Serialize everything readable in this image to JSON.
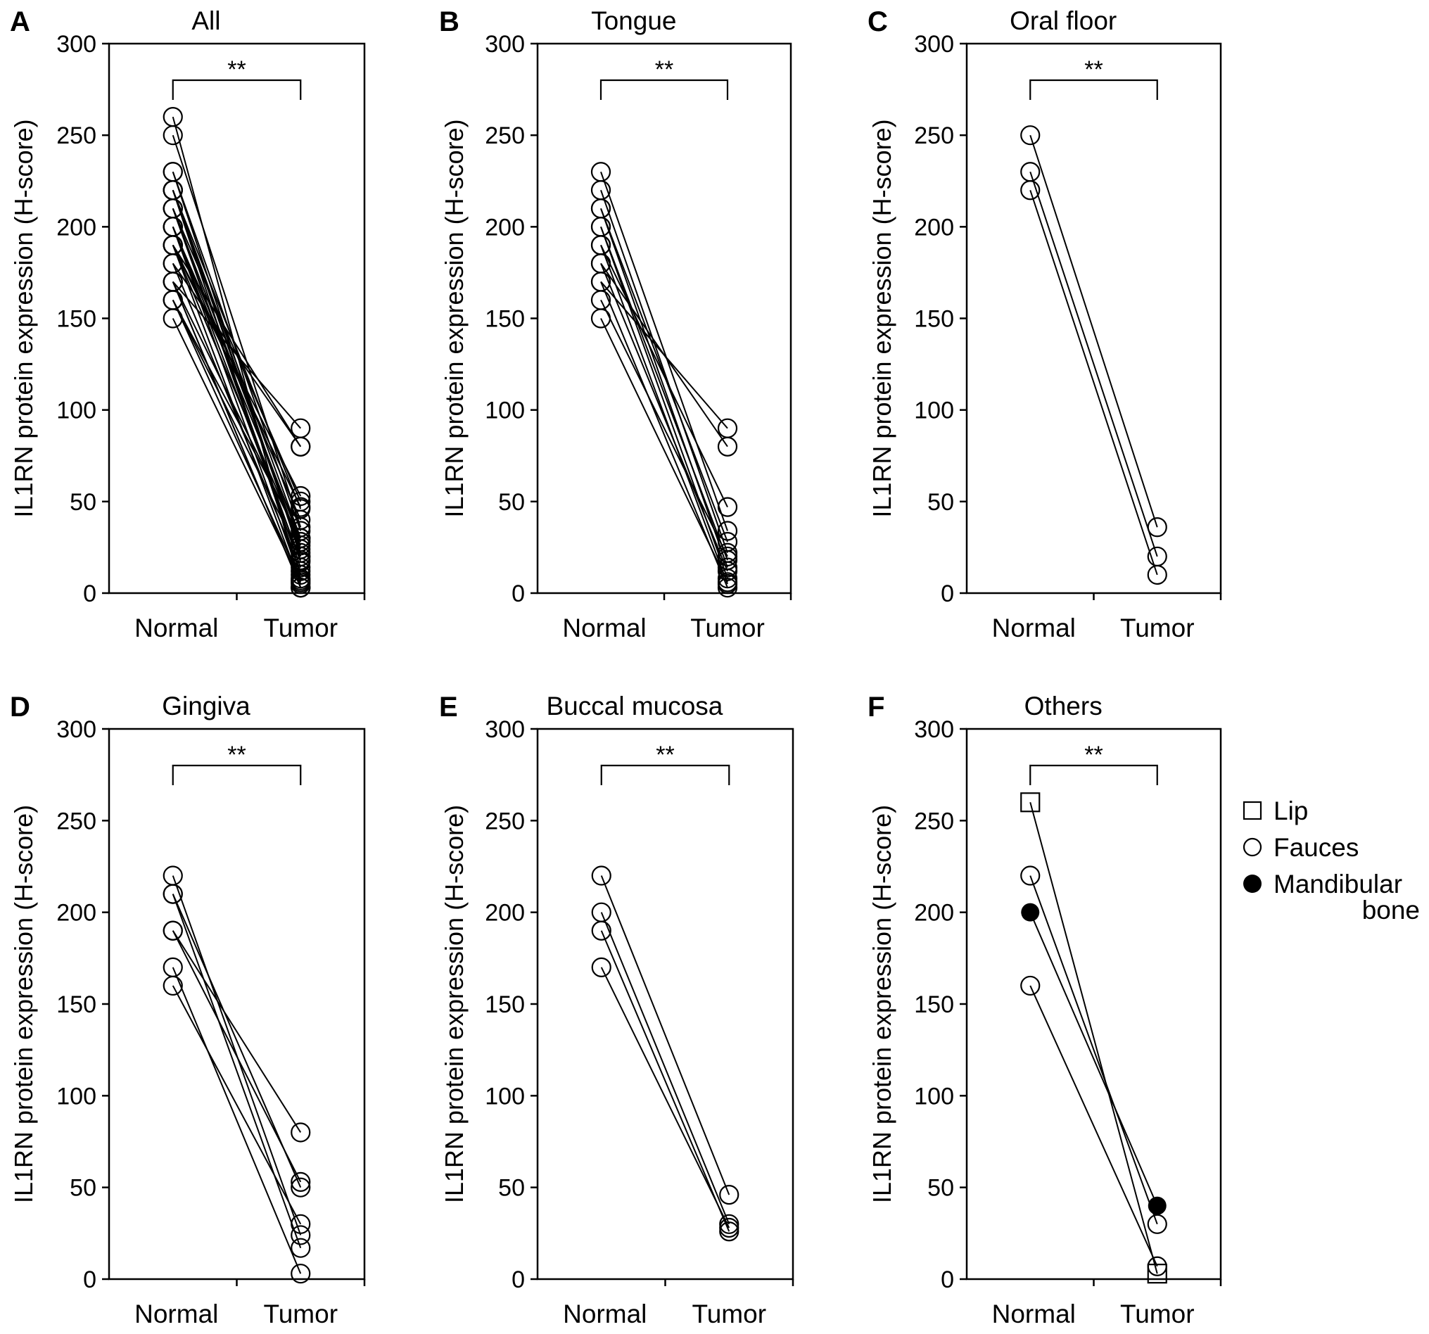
{
  "chart_data": [
    {
      "panel": "A",
      "title": "All",
      "type": "line",
      "ylabel": "IL1RN protein expression (H-score)",
      "categories": [
        "Normal",
        "Tumor"
      ],
      "ylim": [
        0,
        300
      ],
      "yticks": [
        0,
        50,
        100,
        150,
        200,
        250,
        300
      ],
      "significance": "**",
      "pairs": [
        [
          230,
          34
        ],
        [
          220,
          22
        ],
        [
          210,
          28
        ],
        [
          210,
          14
        ],
        [
          200,
          18
        ],
        [
          200,
          8
        ],
        [
          190,
          47
        ],
        [
          190,
          5
        ],
        [
          180,
          80
        ],
        [
          180,
          12
        ],
        [
          170,
          90
        ],
        [
          170,
          3
        ],
        [
          160,
          20
        ],
        [
          150,
          6
        ],
        [
          250,
          36
        ],
        [
          230,
          20
        ],
        [
          220,
          10
        ],
        [
          220,
          24
        ],
        [
          210,
          17
        ],
        [
          190,
          80
        ],
        [
          210,
          50
        ],
        [
          170,
          3
        ],
        [
          160,
          30
        ],
        [
          190,
          53
        ],
        [
          220,
          46
        ],
        [
          200,
          30
        ],
        [
          190,
          26
        ],
        [
          170,
          28
        ],
        [
          260,
          3
        ],
        [
          220,
          30
        ],
        [
          160,
          7
        ],
        [
          200,
          40
        ]
      ]
    },
    {
      "panel": "B",
      "title": "Tongue",
      "type": "line",
      "ylabel": "IL1RN protein expression (H-score)",
      "categories": [
        "Normal",
        "Tumor"
      ],
      "ylim": [
        0,
        300
      ],
      "yticks": [
        0,
        50,
        100,
        150,
        200,
        250,
        300
      ],
      "significance": "**",
      "pairs": [
        [
          230,
          34
        ],
        [
          220,
          22
        ],
        [
          210,
          28
        ],
        [
          210,
          14
        ],
        [
          200,
          18
        ],
        [
          200,
          8
        ],
        [
          190,
          47
        ],
        [
          190,
          5
        ],
        [
          180,
          80
        ],
        [
          180,
          12
        ],
        [
          170,
          90
        ],
        [
          170,
          3
        ],
        [
          160,
          20
        ],
        [
          150,
          6
        ]
      ]
    },
    {
      "panel": "C",
      "title": "Oral floor",
      "type": "line",
      "ylabel": "IL1RN protein expression (H-score)",
      "categories": [
        "Normal",
        "Tumor"
      ],
      "ylim": [
        0,
        300
      ],
      "yticks": [
        0,
        50,
        100,
        150,
        200,
        250,
        300
      ],
      "significance": "**",
      "pairs": [
        [
          250,
          36
        ],
        [
          230,
          20
        ],
        [
          220,
          10
        ]
      ]
    },
    {
      "panel": "D",
      "title": "Gingiva",
      "type": "line",
      "ylabel": "IL1RN protein expression (H-score)",
      "categories": [
        "Normal",
        "Tumor"
      ],
      "ylim": [
        0,
        300
      ],
      "yticks": [
        0,
        50,
        100,
        150,
        200,
        250,
        300
      ],
      "significance": "**",
      "pairs": [
        [
          220,
          24
        ],
        [
          210,
          17
        ],
        [
          190,
          80
        ],
        [
          210,
          50
        ],
        [
          170,
          3
        ],
        [
          160,
          30
        ],
        [
          190,
          53
        ]
      ]
    },
    {
      "panel": "E",
      "title": "Buccal mucosa",
      "type": "line",
      "ylabel": "IL1RN protein expression (H-score)",
      "categories": [
        "Normal",
        "Tumor"
      ],
      "ylim": [
        0,
        300
      ],
      "yticks": [
        0,
        50,
        100,
        150,
        200,
        250,
        300
      ],
      "significance": "**",
      "pairs": [
        [
          220,
          46
        ],
        [
          200,
          30
        ],
        [
          190,
          26
        ],
        [
          170,
          28
        ]
      ]
    },
    {
      "panel": "F",
      "title": "Others",
      "type": "line",
      "ylabel": "IL1RN protein expression (H-score)",
      "categories": [
        "Normal",
        "Tumor"
      ],
      "ylim": [
        0,
        300
      ],
      "yticks": [
        0,
        50,
        100,
        150,
        200,
        250,
        300
      ],
      "significance": "**",
      "pairs": [
        [
          260,
          3,
          "lip"
        ],
        [
          220,
          30,
          "fauces"
        ],
        [
          160,
          7,
          "fauces"
        ],
        [
          200,
          40,
          "mandibular"
        ]
      ],
      "legend": [
        {
          "key": "lip",
          "label": "Lip",
          "marker": "open-square"
        },
        {
          "key": "fauces",
          "label": "Fauces",
          "marker": "open-circle"
        },
        {
          "key": "mandibular",
          "label": "Mandibular",
          "label2": "bone",
          "marker": "filled-circle"
        }
      ],
      "legend_position": "right"
    }
  ]
}
